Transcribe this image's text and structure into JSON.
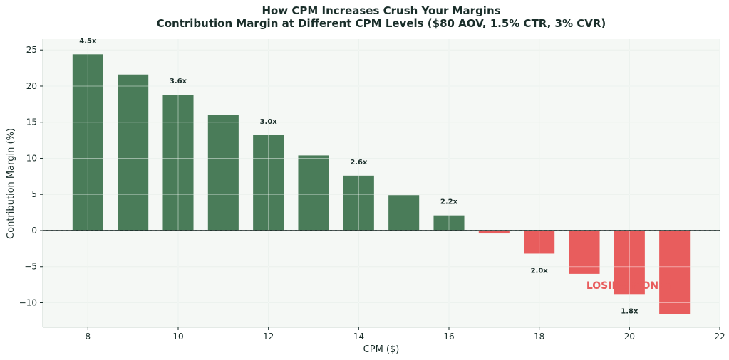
{
  "chart_data": {
    "type": "bar",
    "title": "How CPM Increases Crush Your Margins",
    "subtitle": "Contribution Margin at Different CPM Levels ($80 AOV, 1.5% CTR, 3% CVR)",
    "xlabel": "CPM ($)",
    "ylabel": "Contribution Margin (%)",
    "xlim": [
      7,
      22
    ],
    "ylim": [
      -13.4,
      26.5
    ],
    "xticks": [
      8,
      10,
      12,
      14,
      16,
      18,
      20,
      22
    ],
    "yticks": [
      -10,
      -5,
      0,
      5,
      10,
      15,
      20,
      25
    ],
    "grid": true,
    "x": [
      8,
      9,
      10,
      11,
      12,
      13,
      14,
      15,
      16,
      17,
      18,
      19,
      20,
      21
    ],
    "values": [
      24.4,
      21.6,
      18.8,
      16.0,
      13.2,
      10.4,
      7.6,
      4.9,
      2.1,
      -0.4,
      -3.2,
      -6.0,
      -8.8,
      -11.6
    ],
    "annotations": [
      {
        "x": 8,
        "text": "4.5x"
      },
      {
        "x": 10,
        "text": "3.6x"
      },
      {
        "x": 12,
        "text": "3.0x"
      },
      {
        "x": 14,
        "text": "2.6x"
      },
      {
        "x": 16,
        "text": "2.2x"
      },
      {
        "x": 18,
        "text": "2.0x"
      },
      {
        "x": 20,
        "text": "1.8x"
      }
    ],
    "zone_label": "LOSING MONEY",
    "colors": {
      "positive": "#4a7c59",
      "negative": "#e85d5d",
      "background": "#f5f8f5",
      "grid": "#dde7e0",
      "text": "#1a2e2a"
    }
  }
}
